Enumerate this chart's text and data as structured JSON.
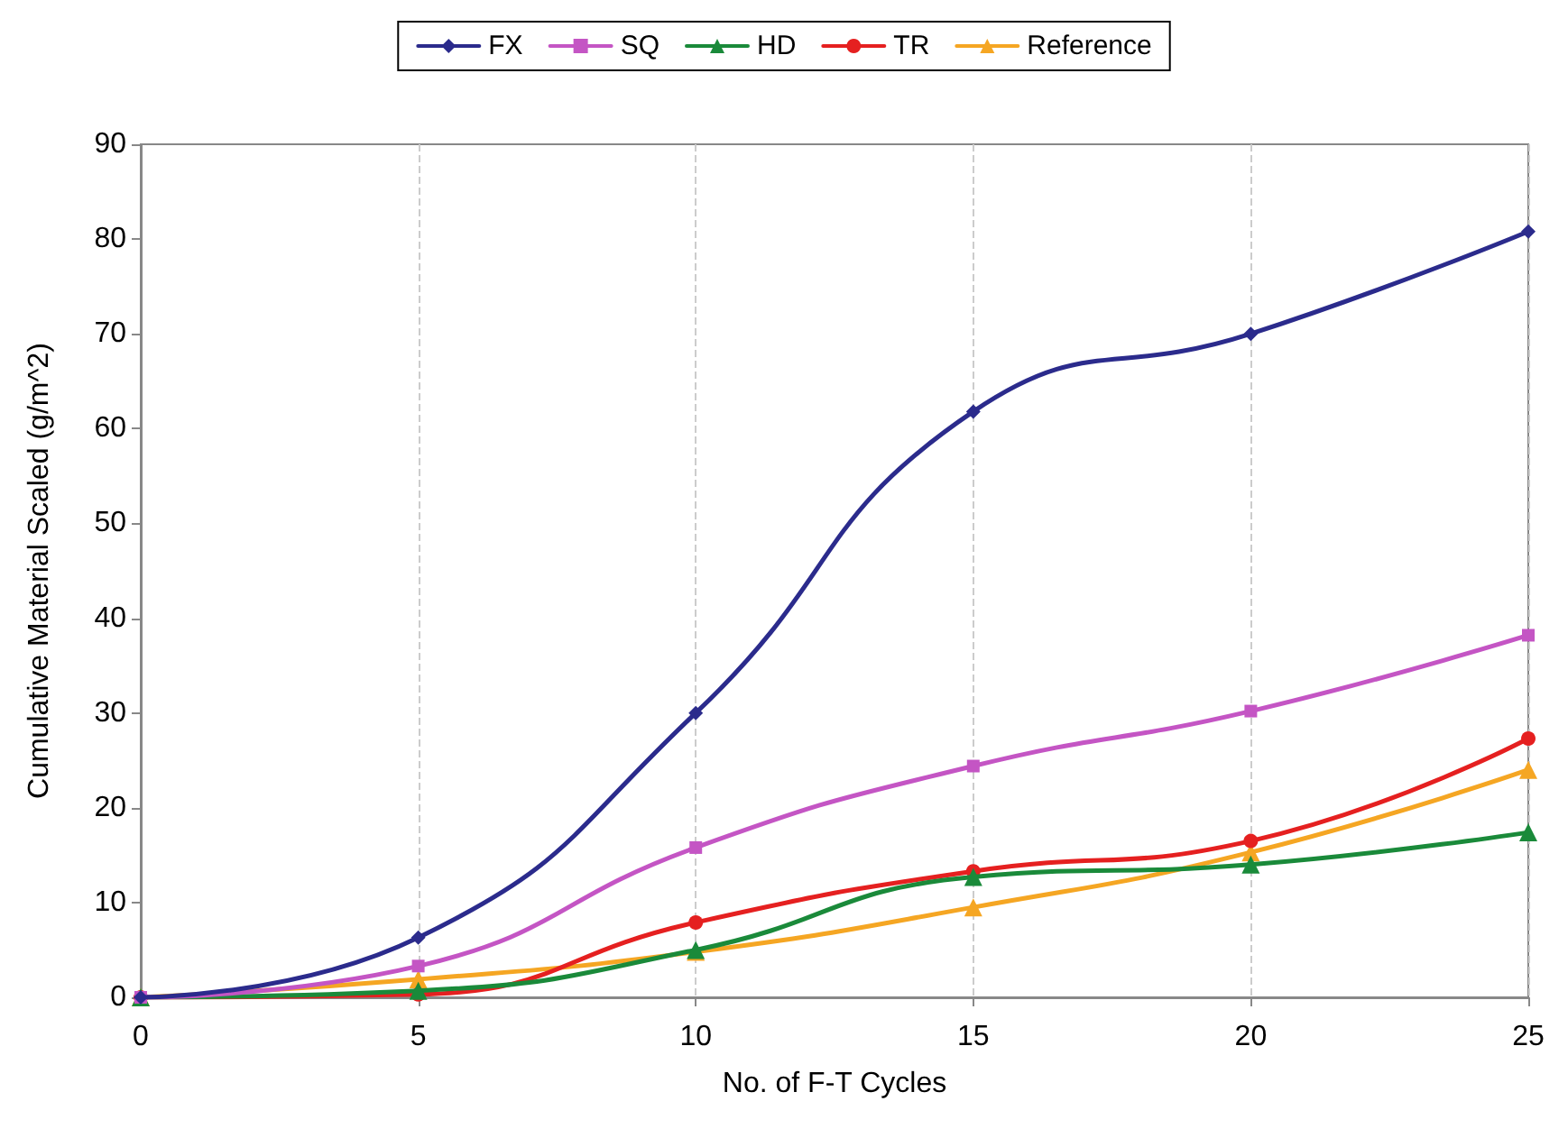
{
  "chart_data": {
    "type": "line",
    "xlabel": "No. of F-T Cycles",
    "ylabel": "Cumulative Material Scaled (g/m^2)",
    "x": [
      0,
      5,
      10,
      15,
      20,
      25
    ],
    "series": [
      {
        "name": "FX",
        "color": "#2b2b8c",
        "marker": "diamond",
        "values": [
          0,
          6.3,
          30,
          61.8,
          70,
          80.8
        ]
      },
      {
        "name": "SQ",
        "color": "#c455c4",
        "marker": "square",
        "values": [
          0,
          3.3,
          15.8,
          24.4,
          30.2,
          38.2
        ]
      },
      {
        "name": "HD",
        "color": "#1a8a3a",
        "marker": "triangle",
        "values": [
          0,
          0.7,
          5,
          12.7,
          14,
          17.4
        ]
      },
      {
        "name": "TR",
        "color": "#e52020",
        "marker": "circle",
        "values": [
          0,
          0.3,
          7.9,
          13.3,
          16.5,
          27.3
        ]
      },
      {
        "name": "Reference",
        "color": "#f5a623",
        "marker": "triangle",
        "values": [
          0,
          1.9,
          4.8,
          9.5,
          15.3,
          24
        ]
      }
    ],
    "xlim": [
      0,
      25
    ],
    "xticks": [
      0,
      5,
      10,
      15,
      20,
      25
    ],
    "ylim": [
      0,
      90
    ],
    "yticks": [
      0,
      10,
      20,
      30,
      40,
      50,
      60,
      70,
      80,
      90
    ],
    "grid": "x",
    "legend": "top",
    "line_style": "solid"
  }
}
